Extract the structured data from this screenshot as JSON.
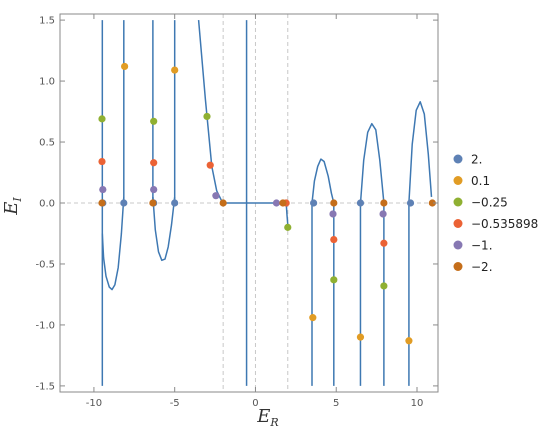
{
  "chart_data": {
    "type": "scatter",
    "title": "",
    "xlabel": {
      "main": "E",
      "sub": "R"
    },
    "ylabel": {
      "main": "E",
      "sub": "I"
    },
    "xlim": [
      -12.1,
      11.3
    ],
    "ylim": [
      -1.55,
      1.55
    ],
    "x_ticks": [
      {
        "value": -10,
        "label": "-10"
      },
      {
        "value": -5,
        "label": "-5"
      },
      {
        "value": 0,
        "label": "0"
      },
      {
        "value": 5,
        "label": "5"
      },
      {
        "value": 10,
        "label": "10"
      }
    ],
    "y_ticks": [
      {
        "value": -1.5,
        "label": "-1.5"
      },
      {
        "value": -1.0,
        "label": "-1.0"
      },
      {
        "value": -0.5,
        "label": "-0.5"
      },
      {
        "value": 0.0,
        "label": "0.0"
      },
      {
        "value": 0.5,
        "label": "0.5"
      },
      {
        "value": 1.0,
        "label": "1.0"
      },
      {
        "value": 1.5,
        "label": "1.5"
      }
    ],
    "reference_lines": {
      "vertical": [
        -2,
        0,
        2
      ],
      "horizontal": [
        0
      ],
      "style": "dashed"
    },
    "legend": {
      "placement": "right"
    },
    "curve": {
      "color": "#3E78B2",
      "vertical_lines": [
        {
          "x": -9.48,
          "y": [
            -1.5,
            1.5
          ]
        },
        {
          "x": -8.15,
          "y": [
            0,
            1.5
          ]
        },
        {
          "x": -6.35,
          "y": [
            0,
            1.5
          ]
        },
        {
          "x": -5.0,
          "y": [
            0,
            1.5
          ]
        },
        {
          "x": -0.55,
          "y": [
            -1.5,
            1.5
          ]
        },
        {
          "x": 3.5,
          "y": [
            -1.5,
            0
          ]
        },
        {
          "x": 4.85,
          "y": [
            -1.5,
            0
          ]
        },
        {
          "x": 6.5,
          "y": [
            -1.5,
            0
          ]
        },
        {
          "x": 7.95,
          "y": [
            -1.5,
            0
          ]
        },
        {
          "x": 9.5,
          "y": [
            -1.5,
            0
          ]
        }
      ],
      "horizontal_segments": [
        {
          "x": [
            -2.0,
            1.9
          ],
          "y": 0
        }
      ],
      "paths": [
        [
          [
            -9.48,
            -0.25
          ],
          [
            -9.4,
            -0.45
          ],
          [
            -9.25,
            -0.6
          ],
          [
            -9.05,
            -0.69
          ],
          [
            -8.88,
            -0.71
          ],
          [
            -8.7,
            -0.67
          ],
          [
            -8.5,
            -0.53
          ],
          [
            -8.3,
            -0.25
          ],
          [
            -8.15,
            0.05
          ]
        ],
        [
          [
            -6.35,
            0.05
          ],
          [
            -6.2,
            -0.22
          ],
          [
            -6.0,
            -0.4
          ],
          [
            -5.8,
            -0.47
          ],
          [
            -5.6,
            -0.46
          ],
          [
            -5.4,
            -0.36
          ],
          [
            -5.2,
            -0.18
          ],
          [
            -5.0,
            0.05
          ]
        ],
        [
          [
            -3.52,
            1.5
          ],
          [
            -3.1,
            0.85
          ],
          [
            -2.7,
            0.3
          ],
          [
            -2.4,
            0.1
          ],
          [
            -2.1,
            0.02
          ],
          [
            -2.0,
            0.0
          ]
        ],
        [
          [
            1.9,
            0.0
          ],
          [
            1.95,
            -0.1
          ],
          [
            2.0,
            -0.18
          ]
        ],
        [
          [
            3.5,
            0.0
          ],
          [
            3.65,
            0.18
          ],
          [
            3.85,
            0.3
          ],
          [
            4.05,
            0.36
          ],
          [
            4.25,
            0.34
          ],
          [
            4.5,
            0.22
          ],
          [
            4.7,
            0.08
          ],
          [
            4.85,
            0.0
          ]
        ],
        [
          [
            6.5,
            0.0
          ],
          [
            6.7,
            0.35
          ],
          [
            6.95,
            0.58
          ],
          [
            7.2,
            0.65
          ],
          [
            7.45,
            0.6
          ],
          [
            7.7,
            0.35
          ],
          [
            7.95,
            0.0
          ]
        ],
        [
          [
            9.5,
            0.0
          ],
          [
            9.7,
            0.48
          ],
          [
            9.95,
            0.76
          ],
          [
            10.2,
            0.83
          ],
          [
            10.45,
            0.73
          ],
          [
            10.7,
            0.4
          ],
          [
            10.9,
            0.05
          ]
        ]
      ]
    },
    "series": [
      {
        "name": "2.",
        "color": "#5E81B5",
        "points": [
          [
            -9.45,
            0
          ],
          [
            -8.15,
            0
          ],
          [
            -6.3,
            0
          ],
          [
            -5.0,
            0
          ],
          [
            3.6,
            0
          ],
          [
            6.5,
            0
          ],
          [
            9.6,
            0
          ]
        ]
      },
      {
        "name": "0.1",
        "color": "#E19C24",
        "points": [
          [
            -8.1,
            1.12
          ],
          [
            -5.0,
            1.09
          ],
          [
            3.55,
            -0.94
          ],
          [
            6.5,
            -1.1
          ],
          [
            9.5,
            -1.13
          ]
        ]
      },
      {
        "name": "−0.25",
        "color": "#8FB032",
        "points": [
          [
            -9.5,
            0.69
          ],
          [
            -6.3,
            0.67
          ],
          [
            -3.0,
            0.71
          ],
          [
            2.0,
            -0.2
          ],
          [
            4.85,
            -0.63
          ],
          [
            7.95,
            -0.68
          ]
        ]
      },
      {
        "name": "−0.535898",
        "color": "#EB6235",
        "points": [
          [
            -9.5,
            0.34
          ],
          [
            -6.3,
            0.33
          ],
          [
            -2.8,
            0.31
          ],
          [
            1.9,
            0
          ],
          [
            4.85,
            -0.3
          ],
          [
            7.95,
            -0.33
          ]
        ]
      },
      {
        "name": "−1.",
        "color": "#8778B3",
        "points": [
          [
            -9.45,
            0.11
          ],
          [
            -6.3,
            0.11
          ],
          [
            -2.45,
            0.06
          ],
          [
            1.3,
            0
          ],
          [
            4.8,
            -0.09
          ],
          [
            7.9,
            -0.09
          ]
        ]
      },
      {
        "name": "−2.",
        "color": "#C56E1A",
        "points": [
          [
            -9.5,
            0
          ],
          [
            -6.35,
            0
          ],
          [
            -2.0,
            0
          ],
          [
            1.7,
            0
          ],
          [
            4.85,
            0
          ],
          [
            7.95,
            0
          ],
          [
            10.95,
            0
          ]
        ]
      }
    ]
  }
}
